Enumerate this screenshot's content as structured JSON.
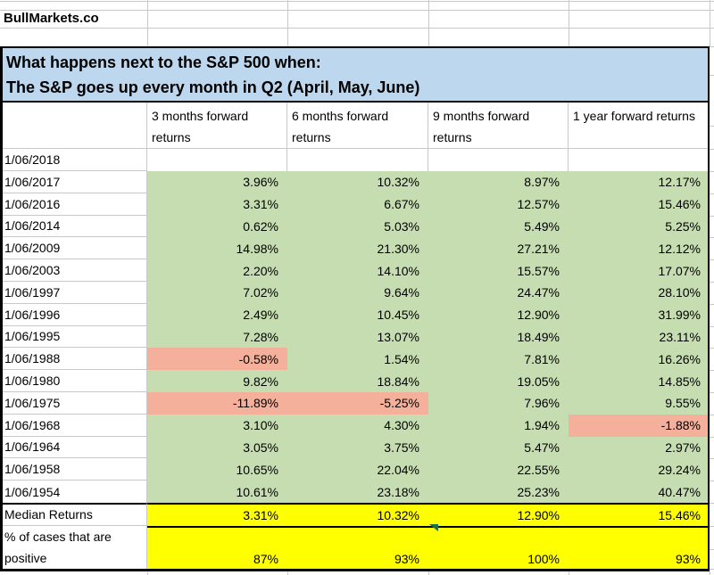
{
  "brand": "BullMarkets.co",
  "title": {
    "line1": "What happens next to the S&P 500 when:",
    "line2": "The S&P goes up every month in Q2 (April, May, June)"
  },
  "columns": [
    "3 months forward returns",
    "6 months forward returns",
    "9 months forward returns",
    "1 year forward returns"
  ],
  "rows": [
    {
      "date": "1/06/2018",
      "values": [
        "",
        "",
        "",
        ""
      ]
    },
    {
      "date": "1/06/2017",
      "values": [
        "3.96%",
        "10.32%",
        "8.97%",
        "12.17%"
      ]
    },
    {
      "date": "1/06/2016",
      "values": [
        "3.31%",
        "6.67%",
        "12.57%",
        "15.46%"
      ]
    },
    {
      "date": "1/06/2014",
      "values": [
        "0.62%",
        "5.03%",
        "5.49%",
        "5.25%"
      ]
    },
    {
      "date": "1/06/2009",
      "values": [
        "14.98%",
        "21.30%",
        "27.21%",
        "12.12%"
      ]
    },
    {
      "date": "1/06/2003",
      "values": [
        "2.20%",
        "14.10%",
        "15.57%",
        "17.07%"
      ]
    },
    {
      "date": "1/06/1997",
      "values": [
        "7.02%",
        "9.64%",
        "24.47%",
        "28.10%"
      ]
    },
    {
      "date": "1/06/1996",
      "values": [
        "2.49%",
        "10.45%",
        "12.90%",
        "31.99%"
      ]
    },
    {
      "date": "1/06/1995",
      "values": [
        "7.28%",
        "13.07%",
        "18.49%",
        "23.11%"
      ]
    },
    {
      "date": "1/06/1988",
      "values": [
        "-0.58%",
        "1.54%",
        "7.81%",
        "16.26%"
      ]
    },
    {
      "date": "1/06/1980",
      "values": [
        "9.82%",
        "18.84%",
        "19.05%",
        "14.85%"
      ]
    },
    {
      "date": "1/06/1975",
      "values": [
        "-11.89%",
        "-5.25%",
        "7.96%",
        "9.55%"
      ]
    },
    {
      "date": "1/06/1968",
      "values": [
        "3.10%",
        "4.30%",
        "1.94%",
        "-1.88%"
      ]
    },
    {
      "date": "1/06/1964",
      "values": [
        "3.05%",
        "3.75%",
        "5.47%",
        "2.97%"
      ]
    },
    {
      "date": "1/06/1958",
      "values": [
        "10.65%",
        "22.04%",
        "22.55%",
        "29.24%"
      ]
    },
    {
      "date": "1/06/1954",
      "values": [
        "10.61%",
        "23.18%",
        "25.23%",
        "40.47%"
      ]
    }
  ],
  "summary": {
    "median_label": "Median Returns",
    "median_values": [
      "3.31%",
      "10.32%",
      "12.90%",
      "15.46%"
    ],
    "positive_label": "% of cases that are positive",
    "positive_values": [
      "87%",
      "93%",
      "100%",
      "93%"
    ]
  },
  "colors": {
    "positive_fill": "#c6ddb2",
    "negative_fill": "#f4b09a",
    "summary_fill": "#ffff00",
    "title_fill": "#bdd7ee",
    "gridline": "#c8c8c8",
    "border": "#000000",
    "indicator_green": "#1e7145"
  }
}
